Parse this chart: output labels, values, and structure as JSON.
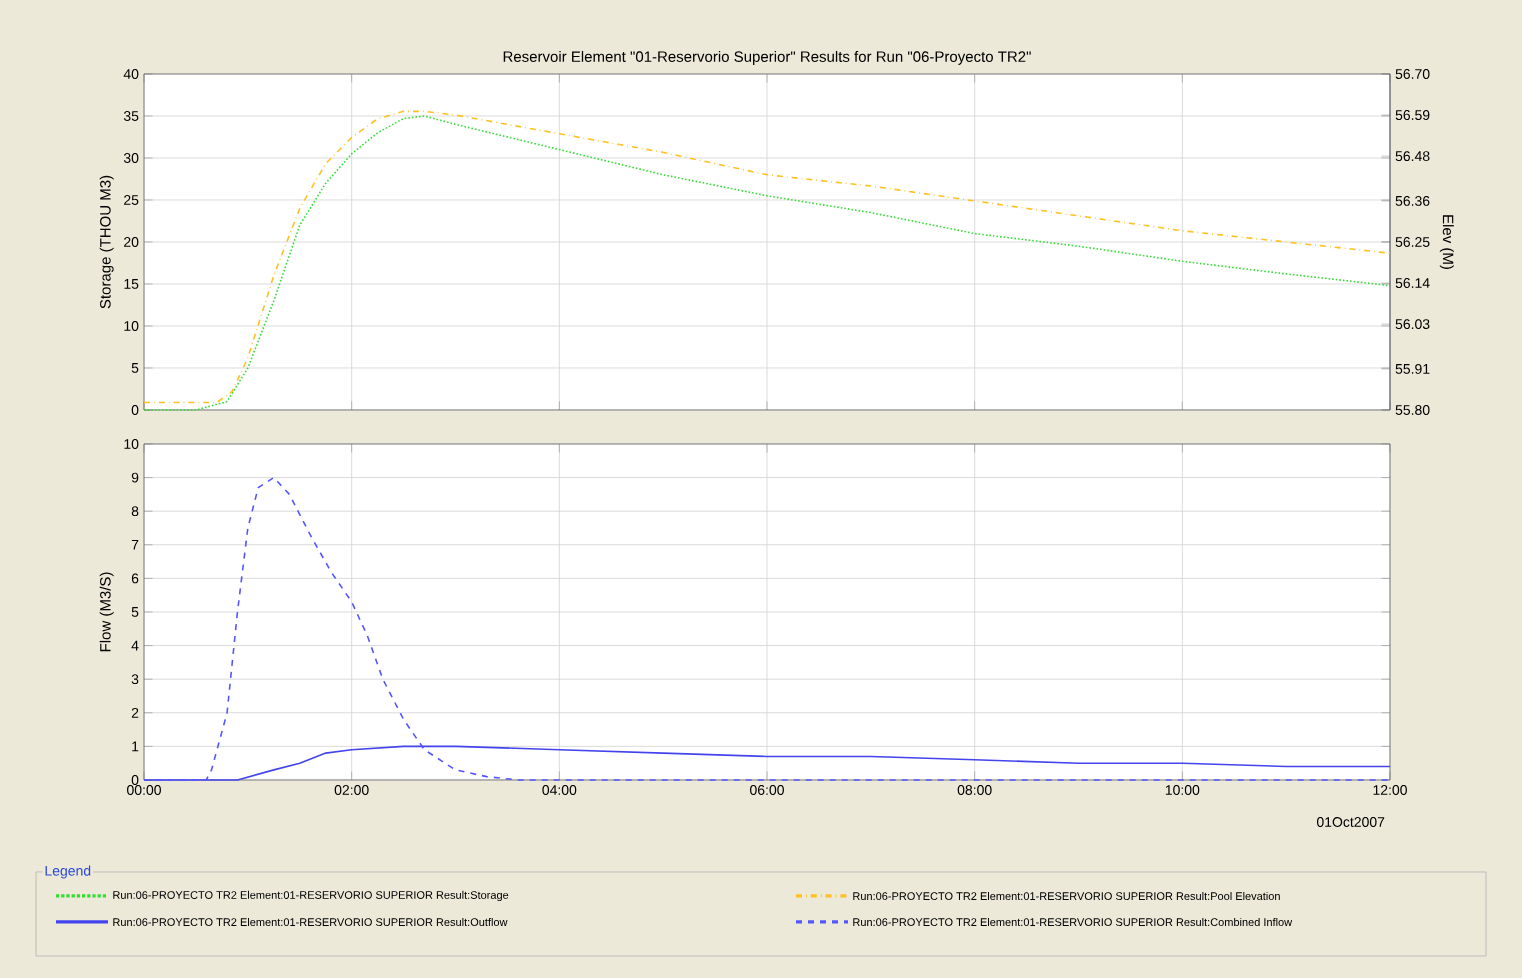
{
  "chart_data": [
    {
      "type": "line",
      "title": "Reservoir Element \"01-Reservorio Superior\" Results for Run \"06-Proyecto TR2\"",
      "ylabel": "Storage (THOU M3)",
      "y2label": "Elev (M)",
      "xlim": [
        0,
        12
      ],
      "xticks": [
        {
          "value": 0,
          "label": null
        },
        {
          "value": 2,
          "label": null
        },
        {
          "value": 4,
          "label": null
        },
        {
          "value": 6,
          "label": null
        },
        {
          "value": 8,
          "label": null
        },
        {
          "value": 10,
          "label": null
        },
        {
          "value": 12,
          "label": null
        }
      ],
      "ylim": [
        0,
        40
      ],
      "yticks": [
        0,
        5,
        10,
        15,
        20,
        25,
        30,
        35,
        40
      ],
      "y2lim": [
        55.8,
        56.7
      ],
      "y2ticks": [
        {
          "value": 55.8,
          "label": "55.80"
        },
        55.91,
        56.03,
        56.14,
        56.25,
        56.36,
        56.48,
        56.59,
        {
          "value": 56.7,
          "label": "56.70"
        }
      ],
      "tick_labels": "y",
      "grid": true,
      "legend": "bottom",
      "series": [
        {
          "name": "Run:06-PROYECTO TR2 Element:01-RESERVORIO SUPERIOR Result:Storage",
          "color": "#33dd33",
          "line_style": "dotted",
          "x": [
            0,
            0.5,
            0.8,
            1.0,
            1.25,
            1.5,
            1.75,
            2.0,
            2.25,
            2.5,
            2.7,
            3,
            4,
            5,
            6,
            7,
            8,
            9,
            10,
            11,
            12
          ],
          "values": [
            0,
            0,
            1,
            5,
            13,
            22,
            27,
            30.5,
            33,
            34.7,
            35,
            34,
            31,
            28,
            25.5,
            23.5,
            21,
            19.5,
            17.7,
            16.2,
            14.8
          ]
        },
        {
          "name": "Run:06-PROYECTO TR2 Element:01-RESERVORIO SUPERIOR Result:Pool Elevation",
          "color": "#ffc020",
          "line_style": "dashdot",
          "axis": "y2",
          "x": [
            0,
            0.7,
            0.85,
            1.0,
            1.25,
            1.5,
            1.75,
            2.0,
            2.25,
            2.5,
            2.7,
            3,
            4,
            5,
            6,
            7,
            8,
            9,
            10,
            11,
            12
          ],
          "values": [
            55.82,
            55.82,
            55.85,
            55.94,
            56.16,
            56.34,
            56.46,
            56.53,
            56.58,
            56.6,
            56.6,
            56.59,
            56.54,
            56.49,
            56.43,
            56.4,
            56.36,
            56.32,
            56.28,
            56.25,
            56.22
          ]
        }
      ]
    },
    {
      "type": "line",
      "ylabel": "Flow (M3/S)",
      "annotations": [
        "01Oct2007"
      ],
      "xlim": [
        0,
        12
      ],
      "xticks": [
        {
          "value": 0,
          "label": "00:00"
        },
        {
          "value": 2,
          "label": "02:00"
        },
        {
          "value": 4,
          "label": "04:00"
        },
        {
          "value": 6,
          "label": "06:00"
        },
        {
          "value": 8,
          "label": "08:00"
        },
        {
          "value": 10,
          "label": "10:00"
        },
        {
          "value": 12,
          "label": "12:00"
        }
      ],
      "ylim": [
        0,
        10
      ],
      "yticks": [
        0,
        1,
        2,
        3,
        4,
        5,
        6,
        7,
        8,
        9,
        10
      ],
      "grid": true,
      "legend": "bottom",
      "legend_title": "Legend",
      "series": [
        {
          "name": "Run:06-PROYECTO TR2 Element:01-RESERVORIO SUPERIOR Result:Outflow",
          "color": "#4444ee",
          "line_style": "solid",
          "x": [
            0,
            0.9,
            1.25,
            1.5,
            1.75,
            2.0,
            2.5,
            3,
            4,
            5,
            6,
            7,
            8,
            9,
            10,
            11,
            12
          ],
          "values": [
            0,
            0,
            0.3,
            0.5,
            0.8,
            0.9,
            1,
            1,
            0.9,
            0.8,
            0.7,
            0.7,
            0.6,
            0.5,
            0.5,
            0.4,
            0.4
          ]
        },
        {
          "name": "Run:06-PROYECTO TR2 Element:01-RESERVORIO SUPERIOR Result:Combined Inflow",
          "color": "#5555ff",
          "line_style": "dashed",
          "x": [
            0,
            0.6,
            0.65,
            0.8,
            0.9,
            1.0,
            1.1,
            1.25,
            1.4,
            1.6,
            1.8,
            2.0,
            2.15,
            2.3,
            2.5,
            2.7,
            3.0,
            3.3,
            3.6,
            12
          ],
          "values": [
            0,
            0,
            0.3,
            2,
            5,
            7.5,
            8.7,
            9,
            8.5,
            7.3,
            6.2,
            5.3,
            4.3,
            3,
            1.8,
            0.9,
            0.3,
            0.1,
            0,
            0
          ]
        }
      ]
    }
  ]
}
